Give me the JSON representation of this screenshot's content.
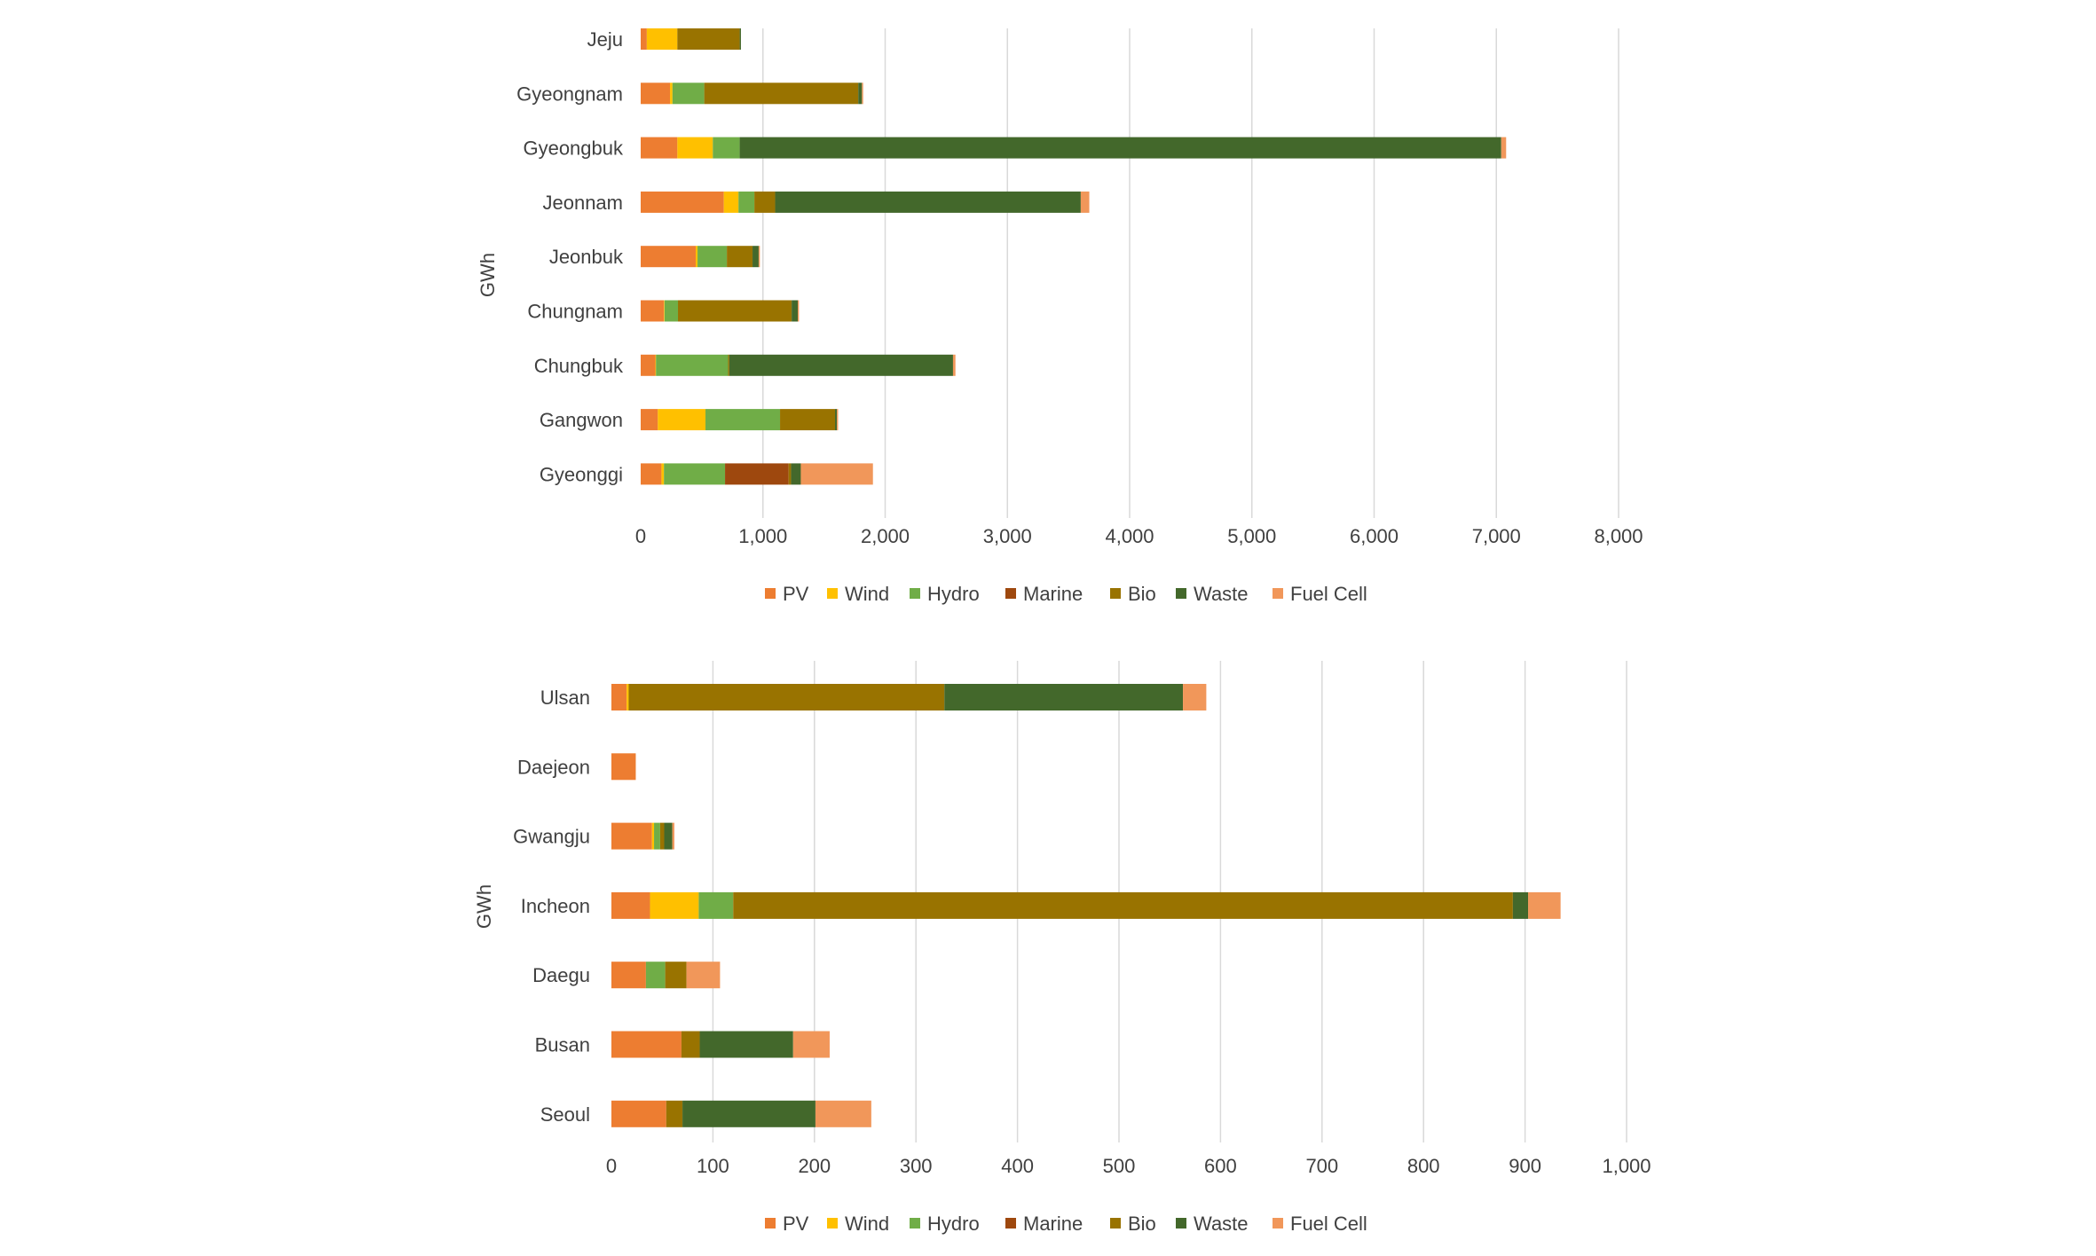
{
  "colors": {
    "PV": "#ED7D31",
    "Wind": "#FFC000",
    "Hydro": "#70AD47",
    "Marine": "#9E480E",
    "Bio": "#997300",
    "Waste": "#43682B",
    "Fuel Cell": "#F1975A"
  },
  "chart_data": [
    {
      "type": "bar",
      "orientation": "horizontal",
      "stacked": true,
      "ylabel": "GWh",
      "xlim": [
        0,
        8000
      ],
      "x_ticks": [
        "0",
        "1,000",
        "2,000",
        "3,000",
        "4,000",
        "5,000",
        "6,000",
        "7,000",
        "8,000"
      ],
      "grid": true,
      "legend_position": "bottom",
      "categories": [
        "Jeju",
        "Gyeongnam",
        "Gyeongbuk",
        "Jeonnam",
        "Jeonbuk",
        "Chungnam",
        "Chungbuk",
        "Gangwon",
        "Gyeonggi"
      ],
      "series": [
        {
          "name": "PV",
          "values": [
            50,
            240,
            300,
            680,
            450,
            190,
            120,
            140,
            170
          ]
        },
        {
          "name": "Wind",
          "values": [
            250,
            20,
            290,
            120,
            15,
            5,
            5,
            390,
            20
          ]
        },
        {
          "name": "Hydro",
          "values": [
            0,
            260,
            220,
            130,
            240,
            110,
            590,
            610,
            500
          ]
        },
        {
          "name": "Marine",
          "values": [
            0,
            0,
            0,
            0,
            0,
            0,
            0,
            0,
            520
          ]
        },
        {
          "name": "Bio",
          "values": [
            510,
            1260,
            0,
            170,
            210,
            930,
            10,
            450,
            20
          ]
        },
        {
          "name": "Waste",
          "values": [
            10,
            30,
            6230,
            2500,
            50,
            50,
            1830,
            15,
            80
          ]
        },
        {
          "name": "Fuel Cell",
          "values": [
            0,
            10,
            40,
            70,
            10,
            10,
            20,
            10,
            590
          ]
        }
      ]
    },
    {
      "type": "bar",
      "orientation": "horizontal",
      "stacked": true,
      "ylabel": "GWh",
      "xlim": [
        0,
        1000
      ],
      "x_ticks": [
        "0",
        "100",
        "200",
        "300",
        "400",
        "500",
        "600",
        "700",
        "800",
        "900",
        "1,000"
      ],
      "grid": true,
      "legend_position": "bottom",
      "categories": [
        "Ulsan",
        "Daejeon",
        "Gwangju",
        "Incheon",
        "Daegu",
        "Busan",
        "Seoul"
      ],
      "series": [
        {
          "name": "PV",
          "values": [
            15,
            24,
            40,
            38,
            34,
            69,
            54
          ]
        },
        {
          "name": "Wind",
          "values": [
            2,
            0,
            2,
            48,
            0,
            0,
            0
          ]
        },
        {
          "name": "Hydro",
          "values": [
            0,
            0,
            6,
            34,
            19,
            0,
            0
          ]
        },
        {
          "name": "Marine",
          "values": [
            0,
            0,
            0,
            0,
            0,
            0,
            0
          ]
        },
        {
          "name": "Bio",
          "values": [
            311,
            0,
            4,
            768,
            21,
            18,
            16
          ]
        },
        {
          "name": "Waste",
          "values": [
            235,
            0,
            8,
            15,
            0,
            92,
            131
          ]
        },
        {
          "name": "Fuel Cell",
          "values": [
            23,
            0,
            2,
            32,
            33,
            36,
            55
          ]
        }
      ]
    }
  ]
}
